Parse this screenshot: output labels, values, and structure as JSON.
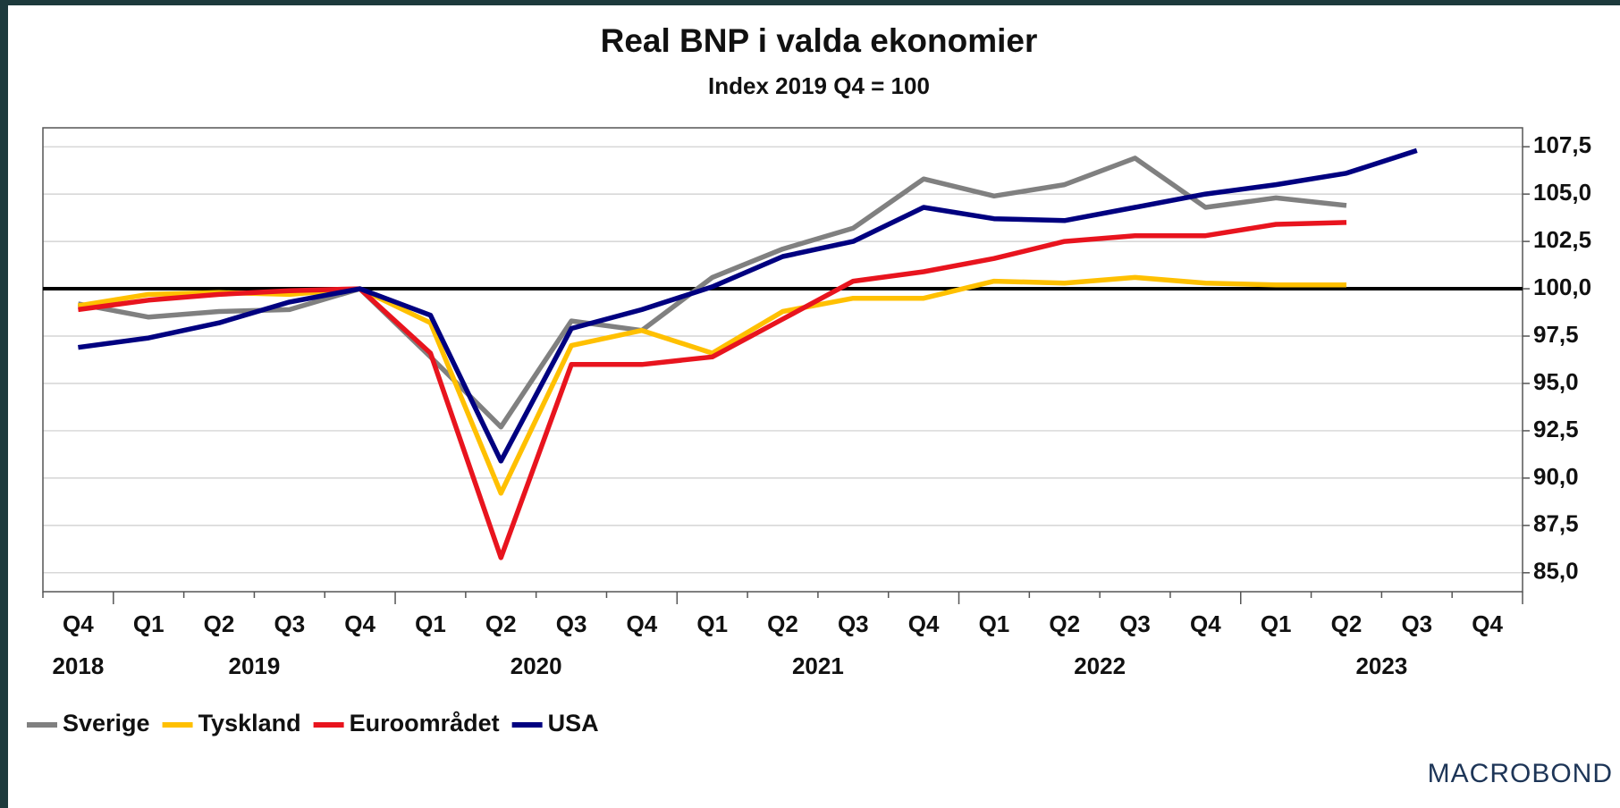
{
  "chart_data": {
    "type": "line",
    "title": "Real BNP i valda ekonomier",
    "subtitle": "Index 2019 Q4 = 100",
    "categories": [
      "Q4",
      "Q1",
      "Q2",
      "Q3",
      "Q4",
      "Q1",
      "Q2",
      "Q3",
      "Q4",
      "Q1",
      "Q2",
      "Q3",
      "Q4",
      "Q1",
      "Q2",
      "Q3",
      "Q4",
      "Q1",
      "Q2",
      "Q3",
      "Q4"
    ],
    "years": [
      "2018",
      "2019",
      "2020",
      "2021",
      "2022",
      "2023"
    ],
    "series": [
      {
        "name": "Sverige",
        "color": "#808080",
        "values": [
          99.2,
          98.5,
          98.8,
          98.9,
          100,
          96.4,
          92.7,
          98.3,
          97.8,
          100.6,
          102.1,
          103.2,
          105.8,
          104.9,
          105.5,
          106.9,
          104.3,
          104.8,
          104.4,
          null,
          null
        ]
      },
      {
        "name": "Tyskland",
        "color": "#FFC000",
        "values": [
          99.1,
          99.7,
          99.8,
          99.7,
          100,
          98.2,
          89.2,
          97.0,
          97.8,
          96.6,
          98.8,
          99.5,
          99.5,
          100.4,
          100.3,
          100.6,
          100.3,
          100.2,
          100.2,
          null,
          null
        ]
      },
      {
        "name": "Euroområdet",
        "color": "#E8141E",
        "values": [
          98.9,
          99.4,
          99.7,
          99.9,
          100,
          96.6,
          85.8,
          96.0,
          96.0,
          96.4,
          98.4,
          100.4,
          100.9,
          101.6,
          102.5,
          102.8,
          102.8,
          103.4,
          103.5,
          null,
          null
        ]
      },
      {
        "name": "USA",
        "color": "#000080",
        "values": [
          96.9,
          97.4,
          98.2,
          99.3,
          100,
          98.6,
          90.9,
          97.9,
          98.9,
          100.1,
          101.7,
          102.5,
          104.3,
          103.7,
          103.6,
          104.3,
          105.0,
          105.5,
          106.1,
          107.3,
          null
        ]
      }
    ],
    "ylim": [
      84,
      108.5
    ],
    "yticks": [
      {
        "value": 85,
        "label": "85,0"
      },
      {
        "value": 87.5,
        "label": "87,5"
      },
      {
        "value": 90,
        "label": "90,0"
      },
      {
        "value": 92.5,
        "label": "92,5"
      },
      {
        "value": 95,
        "label": "95,0"
      },
      {
        "value": 97.5,
        "label": "97,5"
      },
      {
        "value": 100,
        "label": "100,0"
      },
      {
        "value": 102.5,
        "label": "102,5"
      },
      {
        "value": 105,
        "label": "105,0"
      },
      {
        "value": 107.5,
        "label": "107,5"
      }
    ],
    "reference_line": 100,
    "grid": true,
    "legend": "bottom-left",
    "source": "MACROBOND"
  }
}
